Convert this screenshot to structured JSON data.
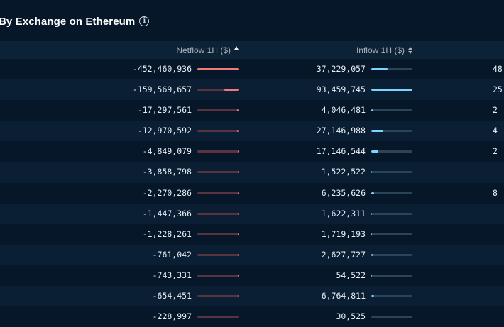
{
  "header": {
    "title": "By Exchange on Ethereum",
    "info_icon": "info-icon"
  },
  "columns": {
    "netflow": "Netflow 1H ($)",
    "inflow": "Inflow 1H ($)"
  },
  "colors": {
    "background": "#051728",
    "netflow_bar": "#f27a7a",
    "inflow_bar": "#7fd3ff"
  },
  "rows": [
    {
      "netflow": "-452,460,936",
      "netflow_fill": 1.0,
      "inflow": "37,229,057",
      "inflow_fill": 0.4,
      "extra": "48"
    },
    {
      "netflow": "-159,569,657",
      "netflow_fill": 0.35,
      "inflow": "93,459,745",
      "inflow_fill": 1.0,
      "extra": "25"
    },
    {
      "netflow": "-17,297,561",
      "netflow_fill": 0.04,
      "inflow": "4,046,481",
      "inflow_fill": 0.04,
      "extra": "2"
    },
    {
      "netflow": "-12,970,592",
      "netflow_fill": 0.03,
      "inflow": "27,146,988",
      "inflow_fill": 0.29,
      "extra": "4"
    },
    {
      "netflow": "-4,849,079",
      "netflow_fill": 0.011,
      "inflow": "17,146,544",
      "inflow_fill": 0.18,
      "extra": "2"
    },
    {
      "netflow": "-3,858,798",
      "netflow_fill": 0.009,
      "inflow": "1,522,522",
      "inflow_fill": 0.02,
      "extra": ""
    },
    {
      "netflow": "-2,270,286",
      "netflow_fill": 0.005,
      "inflow": "6,235,626",
      "inflow_fill": 0.07,
      "extra": "8"
    },
    {
      "netflow": "-1,447,366",
      "netflow_fill": 0.003,
      "inflow": "1,622,311",
      "inflow_fill": 0.02,
      "extra": ""
    },
    {
      "netflow": "-1,228,261",
      "netflow_fill": 0.003,
      "inflow": "1,719,193",
      "inflow_fill": 0.02,
      "extra": ""
    },
    {
      "netflow": "-761,042",
      "netflow_fill": 0.002,
      "inflow": "2,627,727",
      "inflow_fill": 0.03,
      "extra": ""
    },
    {
      "netflow": "-743,331",
      "netflow_fill": 0.002,
      "inflow": "54,522",
      "inflow_fill": 0.01,
      "extra": ""
    },
    {
      "netflow": "-654,451",
      "netflow_fill": 0.001,
      "inflow": "6,764,811",
      "inflow_fill": 0.07,
      "extra": ""
    },
    {
      "netflow": "-228,997",
      "netflow_fill": 0.0,
      "inflow": "30,525",
      "inflow_fill": 0.0,
      "extra": ""
    }
  ]
}
